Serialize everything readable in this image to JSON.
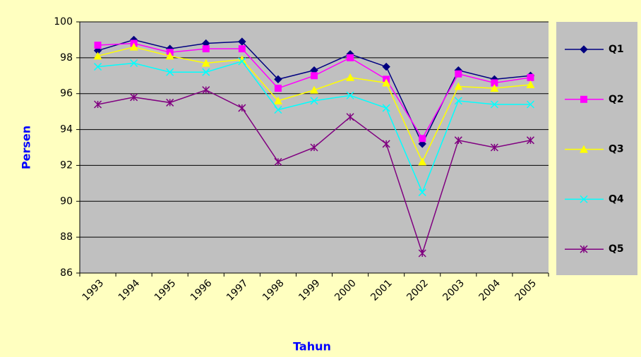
{
  "chart_data": {
    "type": "line",
    "x_label": "Tahun",
    "y_label": "Persen",
    "categories": [
      "1993",
      "1994",
      "1995",
      "1996",
      "1997",
      "1998",
      "1999",
      "2000",
      "2001",
      "2002",
      "2003",
      "2004",
      "2005"
    ],
    "series": [
      {
        "name": "Q1",
        "color": "#000080",
        "marker": "diamond",
        "values": [
          98.4,
          99.0,
          98.5,
          98.8,
          98.9,
          96.8,
          97.3,
          98.2,
          97.5,
          93.2,
          97.3,
          96.8,
          97.0
        ]
      },
      {
        "name": "Q2",
        "color": "#ff00ff",
        "marker": "square",
        "values": [
          98.7,
          98.8,
          98.3,
          98.5,
          98.5,
          96.3,
          97.0,
          98.0,
          96.8,
          93.5,
          97.1,
          96.6,
          96.9
        ]
      },
      {
        "name": "Q3",
        "color": "#ffff00",
        "marker": "triangle",
        "values": [
          98.1,
          98.6,
          98.1,
          97.7,
          97.9,
          95.6,
          96.2,
          96.9,
          96.6,
          92.2,
          96.4,
          96.3,
          96.5
        ]
      },
      {
        "name": "Q4",
        "color": "#00ffff",
        "marker": "x",
        "values": [
          97.5,
          97.7,
          97.2,
          97.2,
          97.8,
          95.1,
          95.6,
          95.9,
          95.2,
          90.5,
          95.6,
          95.4,
          95.4
        ]
      },
      {
        "name": "Q5",
        "color": "#800080",
        "marker": "star",
        "values": [
          95.4,
          95.8,
          95.5,
          96.2,
          95.2,
          92.2,
          93.0,
          94.7,
          93.2,
          87.1,
          93.4,
          93.0,
          93.4
        ]
      }
    ],
    "ylim": [
      86,
      100
    ],
    "yticks": [
      86,
      88,
      90,
      92,
      94,
      96,
      98,
      100
    ],
    "grid": true,
    "legend": "right"
  }
}
